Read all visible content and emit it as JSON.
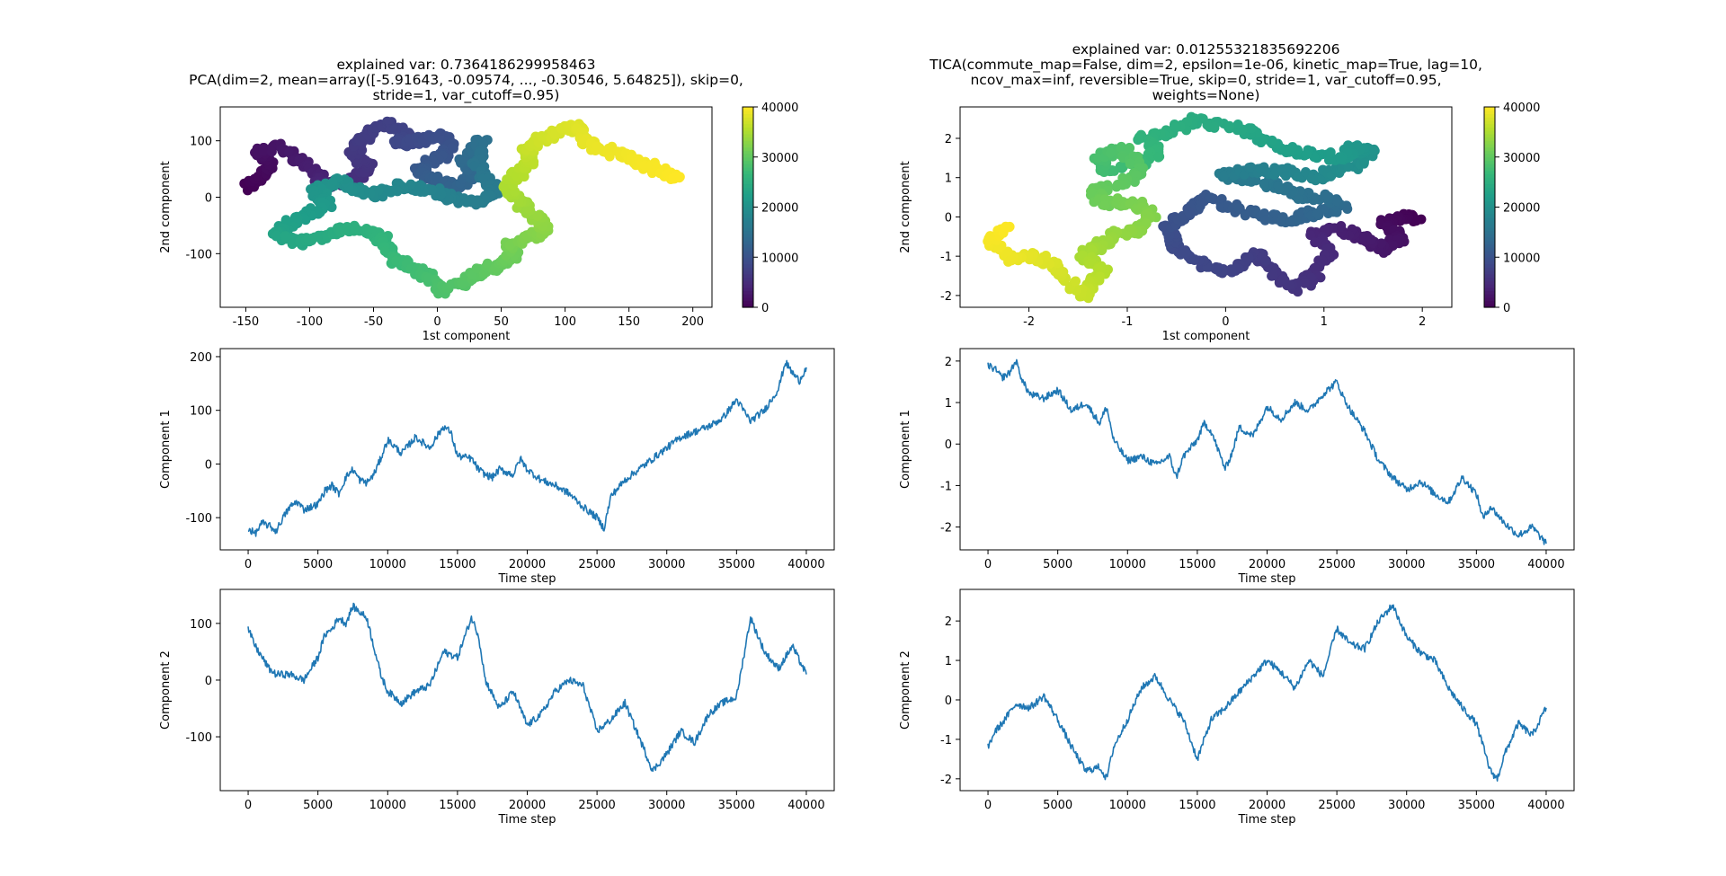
{
  "chart_data": [
    {
      "id": "pca_scatter",
      "type": "scatter",
      "title": [
        "explained var: 0.7364186299958463",
        "PCA(dim=2, mean=array([-5.91643, -0.09574, ..., -0.30546,  5.64825]), skip=0,",
        "stride=1, var_cutoff=0.95)"
      ],
      "xlabel": "1st component",
      "ylabel": "2nd component",
      "xlim": [
        -170,
        215
      ],
      "ylim": [
        -195,
        160
      ],
      "xticks": [
        -150,
        -100,
        -50,
        0,
        50,
        100,
        150,
        200
      ],
      "yticks": [
        -100,
        0,
        100
      ],
      "colorbar": {
        "label": "",
        "range": [
          0,
          40000
        ],
        "ticks": [
          0,
          10000,
          20000,
          30000,
          40000
        ],
        "colormap": "viridis"
      },
      "path": [
        [
          -150,
          15,
          0
        ],
        [
          -140,
          35,
          600
        ],
        [
          -130,
          60,
          1200
        ],
        [
          -140,
          78,
          1700
        ],
        [
          -125,
          90,
          2200
        ],
        [
          -110,
          70,
          2800
        ],
        [
          -95,
          45,
          3500
        ],
        [
          -90,
          20,
          4200
        ],
        [
          -75,
          25,
          4800
        ],
        [
          -60,
          35,
          5400
        ],
        [
          -55,
          55,
          6000
        ],
        [
          -65,
          75,
          6400
        ],
        [
          -60,
          100,
          6900
        ],
        [
          -50,
          120,
          7300
        ],
        [
          -35,
          130,
          7700
        ],
        [
          -25,
          110,
          8200
        ],
        [
          -30,
          95,
          8600
        ],
        [
          -15,
          100,
          9000
        ],
        [
          0,
          110,
          9500
        ],
        [
          10,
          90,
          10000
        ],
        [
          5,
          75,
          10500
        ],
        [
          -15,
          55,
          11000
        ],
        [
          -10,
          40,
          11500
        ],
        [
          0,
          30,
          12000
        ],
        [
          15,
          20,
          12600
        ],
        [
          30,
          40,
          13200
        ],
        [
          20,
          65,
          13700
        ],
        [
          30,
          85,
          14200
        ],
        [
          35,
          100,
          14800
        ],
        [
          30,
          60,
          15400
        ],
        [
          40,
          30,
          16000
        ],
        [
          45,
          10,
          16500
        ],
        [
          30,
          -10,
          17000
        ],
        [
          10,
          0,
          17500
        ],
        [
          -10,
          15,
          18000
        ],
        [
          -30,
          20,
          18500
        ],
        [
          -45,
          5,
          19000
        ],
        [
          -65,
          15,
          19600
        ],
        [
          -80,
          30,
          20200
        ],
        [
          -95,
          10,
          20800
        ],
        [
          -85,
          -10,
          21400
        ],
        [
          -100,
          -30,
          22000
        ],
        [
          -115,
          -45,
          22600
        ],
        [
          -130,
          -65,
          23200
        ],
        [
          -110,
          -80,
          23800
        ],
        [
          -90,
          -70,
          24400
        ],
        [
          -70,
          -55,
          25000
        ],
        [
          -50,
          -60,
          25600
        ],
        [
          -40,
          -80,
          26200
        ],
        [
          -35,
          -110,
          26800
        ],
        [
          -20,
          -125,
          27400
        ],
        [
          -5,
          -145,
          28000
        ],
        [
          5,
          -165,
          28600
        ],
        [
          20,
          -150,
          29200
        ],
        [
          35,
          -130,
          29800
        ],
        [
          50,
          -120,
          30400
        ],
        [
          60,
          -105,
          31000
        ],
        [
          55,
          -85,
          31600
        ],
        [
          70,
          -75,
          32200
        ],
        [
          85,
          -60,
          32800
        ],
        [
          80,
          -40,
          33400
        ],
        [
          70,
          -20,
          34000
        ],
        [
          60,
          0,
          34600
        ],
        [
          55,
          25,
          35100
        ],
        [
          65,
          45,
          35600
        ],
        [
          75,
          65,
          36100
        ],
        [
          70,
          85,
          36600
        ],
        [
          80,
          100,
          37100
        ],
        [
          95,
          115,
          37600
        ],
        [
          110,
          125,
          38100
        ],
        [
          115,
          100,
          38600
        ],
        [
          130,
          85,
          39000
        ],
        [
          150,
          70,
          39300
        ],
        [
          165,
          55,
          39600
        ],
        [
          180,
          40,
          39800
        ],
        [
          190,
          30,
          40000
        ]
      ]
    },
    {
      "id": "tica_scatter",
      "type": "scatter",
      "title": [
        "explained var: 0.01255321835692206",
        "TICA(commute_map=False, dim=2, epsilon=1e-06, kinetic_map=True, lag=10,",
        "ncov_max=inf, reversible=True, skip=0, stride=1, var_cutoff=0.95,",
        "weights=None)"
      ],
      "xlabel": "1st component",
      "ylabel": "2nd component",
      "xlim": [
        -2.7,
        2.3
      ],
      "ylim": [
        -2.3,
        2.8
      ],
      "xticks": [
        -2,
        -1,
        0,
        1,
        2
      ],
      "yticks": [
        -2,
        -1,
        0,
        1,
        2
      ],
      "colorbar": {
        "label": "",
        "range": [
          0,
          40000
        ],
        "ticks": [
          0,
          10000,
          20000,
          30000,
          40000
        ],
        "colormap": "viridis"
      },
      "path": [
        [
          1.95,
          -0.05,
          0
        ],
        [
          1.75,
          0.0,
          600
        ],
        [
          1.6,
          -0.2,
          1200
        ],
        [
          1.8,
          -0.5,
          1800
        ],
        [
          1.6,
          -0.85,
          2400
        ],
        [
          1.4,
          -0.55,
          3000
        ],
        [
          1.1,
          -0.3,
          3600
        ],
        [
          0.9,
          -0.45,
          4200
        ],
        [
          1.05,
          -0.9,
          4800
        ],
        [
          0.9,
          -1.5,
          5400
        ],
        [
          0.7,
          -1.85,
          6000
        ],
        [
          0.45,
          -1.35,
          6600
        ],
        [
          0.3,
          -0.9,
          7200
        ],
        [
          0.1,
          -1.4,
          7800
        ],
        [
          -0.2,
          -1.2,
          8400
        ],
        [
          -0.5,
          -0.8,
          9000
        ],
        [
          -0.6,
          -0.3,
          9600
        ],
        [
          -0.4,
          0.1,
          10200
        ],
        [
          -0.2,
          0.5,
          10800
        ],
        [
          0.1,
          0.2,
          11400
        ],
        [
          0.4,
          0.0,
          12000
        ],
        [
          0.7,
          -0.05,
          12600
        ],
        [
          0.9,
          0.1,
          13200
        ],
        [
          1.2,
          0.25,
          13800
        ],
        [
          1.05,
          0.5,
          14400
        ],
        [
          0.75,
          0.55,
          15000
        ],
        [
          0.5,
          0.8,
          15600
        ],
        [
          0.2,
          1.0,
          16200
        ],
        [
          -0.05,
          1.05,
          16800
        ],
        [
          0.3,
          1.2,
          17400
        ],
        [
          0.6,
          1.15,
          18000
        ],
        [
          0.9,
          1.0,
          18600
        ],
        [
          1.1,
          1.15,
          19200
        ],
        [
          1.35,
          1.35,
          19800
        ],
        [
          1.5,
          1.65,
          20400
        ],
        [
          1.3,
          1.75,
          21000
        ],
        [
          1.15,
          1.5,
          21600
        ],
        [
          0.85,
          1.6,
          22200
        ],
        [
          0.5,
          1.8,
          22800
        ],
        [
          0.3,
          2.1,
          23400
        ],
        [
          0.05,
          2.3,
          24000
        ],
        [
          -0.3,
          2.45,
          24600
        ],
        [
          -0.6,
          2.15,
          25200
        ],
        [
          -0.85,
          2.0,
          25800
        ],
        [
          -0.65,
          1.65,
          26400
        ],
        [
          -0.9,
          1.35,
          27000
        ],
        [
          -1.2,
          1.2,
          27600
        ],
        [
          -1.3,
          1.55,
          28200
        ],
        [
          -1.05,
          1.75,
          28800
        ],
        [
          -0.85,
          1.2,
          29400
        ],
        [
          -1.05,
          0.85,
          30000
        ],
        [
          -1.35,
          0.65,
          30600
        ],
        [
          -1.25,
          0.35,
          31200
        ],
        [
          -0.95,
          0.4,
          31800
        ],
        [
          -0.75,
          0.1,
          32400
        ],
        [
          -0.9,
          -0.35,
          33000
        ],
        [
          -1.15,
          -0.45,
          33600
        ],
        [
          -1.3,
          -0.75,
          34200
        ],
        [
          -1.45,
          -1.0,
          34800
        ],
        [
          -1.25,
          -1.3,
          35400
        ],
        [
          -1.35,
          -1.7,
          36000
        ],
        [
          -1.45,
          -2.0,
          36600
        ],
        [
          -1.6,
          -1.6,
          37200
        ],
        [
          -1.75,
          -1.2,
          37800
        ],
        [
          -1.95,
          -1.0,
          38400
        ],
        [
          -2.2,
          -1.05,
          39000
        ],
        [
          -2.4,
          -0.6,
          39500
        ],
        [
          -2.2,
          -0.25,
          40000
        ]
      ]
    },
    {
      "id": "pca_comp1",
      "type": "line",
      "xlabel": "Time step",
      "ylabel": "Component 1",
      "xlim": [
        -2000,
        42000
      ],
      "ylim": [
        -160,
        215
      ],
      "xticks": [
        0,
        5000,
        10000,
        15000,
        20000,
        25000,
        30000,
        35000,
        40000
      ],
      "yticks": [
        -100,
        0,
        100,
        200
      ],
      "x": [
        0,
        500,
        1000,
        1500,
        2000,
        2500,
        3000,
        3500,
        4000,
        5000,
        5500,
        6000,
        6500,
        7000,
        7500,
        8000,
        8500,
        9000,
        9500,
        10000,
        11000,
        12000,
        13000,
        14000,
        14500,
        15000,
        16000,
        16500,
        17000,
        17500,
        18000,
        19000,
        19500,
        20000,
        21000,
        22000,
        23000,
        24000,
        25000,
        25500,
        26000,
        27000,
        28000,
        29000,
        30000,
        31000,
        32000,
        33000,
        34000,
        35000,
        36000,
        37000,
        38000,
        38500,
        39000,
        39500,
        40000
      ],
      "values": [
        -120,
        -130,
        -110,
        -115,
        -125,
        -100,
        -80,
        -70,
        -85,
        -75,
        -50,
        -40,
        -55,
        -25,
        -10,
        -30,
        -35,
        -20,
        10,
        45,
        20,
        50,
        30,
        70,
        60,
        15,
        10,
        -10,
        -20,
        -25,
        -10,
        -20,
        10,
        -10,
        -30,
        -40,
        -55,
        -80,
        -100,
        -120,
        -60,
        -30,
        -10,
        10,
        30,
        50,
        60,
        70,
        85,
        120,
        80,
        100,
        140,
        190,
        170,
        155,
        180
      ]
    },
    {
      "id": "pca_comp2",
      "type": "line",
      "xlabel": "Time step",
      "ylabel": "Component 2",
      "xlim": [
        -2000,
        42000
      ],
      "ylim": [
        -195,
        160
      ],
      "xticks": [
        0,
        5000,
        10000,
        15000,
        20000,
        25000,
        30000,
        35000,
        40000
      ],
      "yticks": [
        -100,
        0,
        100
      ],
      "x": [
        0,
        500,
        1000,
        1500,
        2000,
        3000,
        4000,
        5000,
        5500,
        6000,
        6500,
        7000,
        7500,
        8000,
        8500,
        9000,
        9500,
        10000,
        11000,
        12000,
        13000,
        14000,
        15000,
        16000,
        16500,
        17000,
        18000,
        19000,
        20000,
        21000,
        22000,
        23000,
        24000,
        25000,
        26000,
        27000,
        28000,
        29000,
        30000,
        31000,
        32000,
        33000,
        34000,
        35000,
        36000,
        37000,
        38000,
        39000,
        40000
      ],
      "values": [
        90,
        60,
        40,
        20,
        10,
        10,
        0,
        40,
        80,
        90,
        110,
        100,
        130,
        120,
        110,
        60,
        10,
        -20,
        -40,
        -20,
        -10,
        50,
        40,
        110,
        80,
        0,
        -50,
        -20,
        -80,
        -60,
        -20,
        0,
        -10,
        -90,
        -70,
        -40,
        -100,
        -160,
        -130,
        -90,
        -110,
        -60,
        -40,
        -30,
        110,
        50,
        20,
        60,
        10
      ]
    },
    {
      "id": "tica_comp1",
      "type": "line",
      "xlabel": "Time step",
      "ylabel": "Component 1",
      "xlim": [
        -2000,
        42000
      ],
      "ylim": [
        -2.55,
        2.3
      ],
      "xticks": [
        0,
        5000,
        10000,
        15000,
        20000,
        25000,
        30000,
        35000,
        40000
      ],
      "yticks": [
        -2,
        -1,
        0,
        1,
        2
      ],
      "x": [
        0,
        500,
        1000,
        1500,
        2000,
        2500,
        3000,
        4000,
        5000,
        6000,
        7000,
        8000,
        8500,
        9000,
        10000,
        11000,
        12000,
        13000,
        13500,
        14000,
        15000,
        15500,
        16000,
        17000,
        17500,
        18000,
        19000,
        20000,
        21000,
        22000,
        23000,
        24000,
        25000,
        25500,
        26000,
        27000,
        28000,
        29000,
        30000,
        31000,
        32000,
        33000,
        34000,
        35000,
        35500,
        36000,
        37000,
        38000,
        39000,
        40000
      ],
      "values": [
        1.9,
        1.8,
        1.6,
        1.7,
        2.0,
        1.5,
        1.2,
        1.1,
        1.3,
        0.8,
        1.0,
        0.5,
        0.9,
        0.1,
        -0.4,
        -0.3,
        -0.5,
        -0.3,
        -0.8,
        -0.3,
        0.1,
        0.5,
        0.3,
        -0.6,
        -0.2,
        0.4,
        0.2,
        0.9,
        0.6,
        1.0,
        0.8,
        1.2,
        1.5,
        1.1,
        0.8,
        0.3,
        -0.4,
        -0.8,
        -1.1,
        -0.9,
        -1.2,
        -1.4,
        -0.8,
        -1.2,
        -1.8,
        -1.5,
        -1.9,
        -2.2,
        -2.0,
        -2.4
      ]
    },
    {
      "id": "tica_comp2",
      "type": "line",
      "xlabel": "Time step",
      "ylabel": "Component 2",
      "xlim": [
        -2000,
        42000
      ],
      "ylim": [
        -2.3,
        2.8
      ],
      "xticks": [
        0,
        5000,
        10000,
        15000,
        20000,
        25000,
        30000,
        35000,
        40000
      ],
      "yticks": [
        -2,
        -1,
        0,
        1,
        2
      ],
      "x": [
        0,
        500,
        1000,
        2000,
        3000,
        4000,
        5000,
        6000,
        7000,
        8000,
        8500,
        9000,
        10000,
        11000,
        12000,
        13000,
        14000,
        15000,
        16000,
        17000,
        18000,
        19000,
        20000,
        21000,
        22000,
        23000,
        24000,
        25000,
        26000,
        27000,
        28000,
        29000,
        30000,
        31000,
        32000,
        33000,
        34000,
        35000,
        36000,
        36500,
        37000,
        38000,
        39000,
        40000
      ],
      "values": [
        -1.2,
        -0.8,
        -0.6,
        -0.1,
        -0.2,
        0.1,
        -0.5,
        -1.2,
        -1.8,
        -1.7,
        -2.0,
        -1.2,
        -0.5,
        0.3,
        0.6,
        0.0,
        -0.5,
        -1.5,
        -0.5,
        -0.2,
        0.2,
        0.6,
        1.0,
        0.7,
        0.3,
        1.0,
        0.6,
        1.8,
        1.4,
        1.3,
        2.0,
        2.4,
        1.6,
        1.2,
        1.0,
        0.3,
        -0.2,
        -0.6,
        -1.8,
        -2.0,
        -1.4,
        -0.6,
        -0.9,
        -0.2
      ]
    }
  ]
}
